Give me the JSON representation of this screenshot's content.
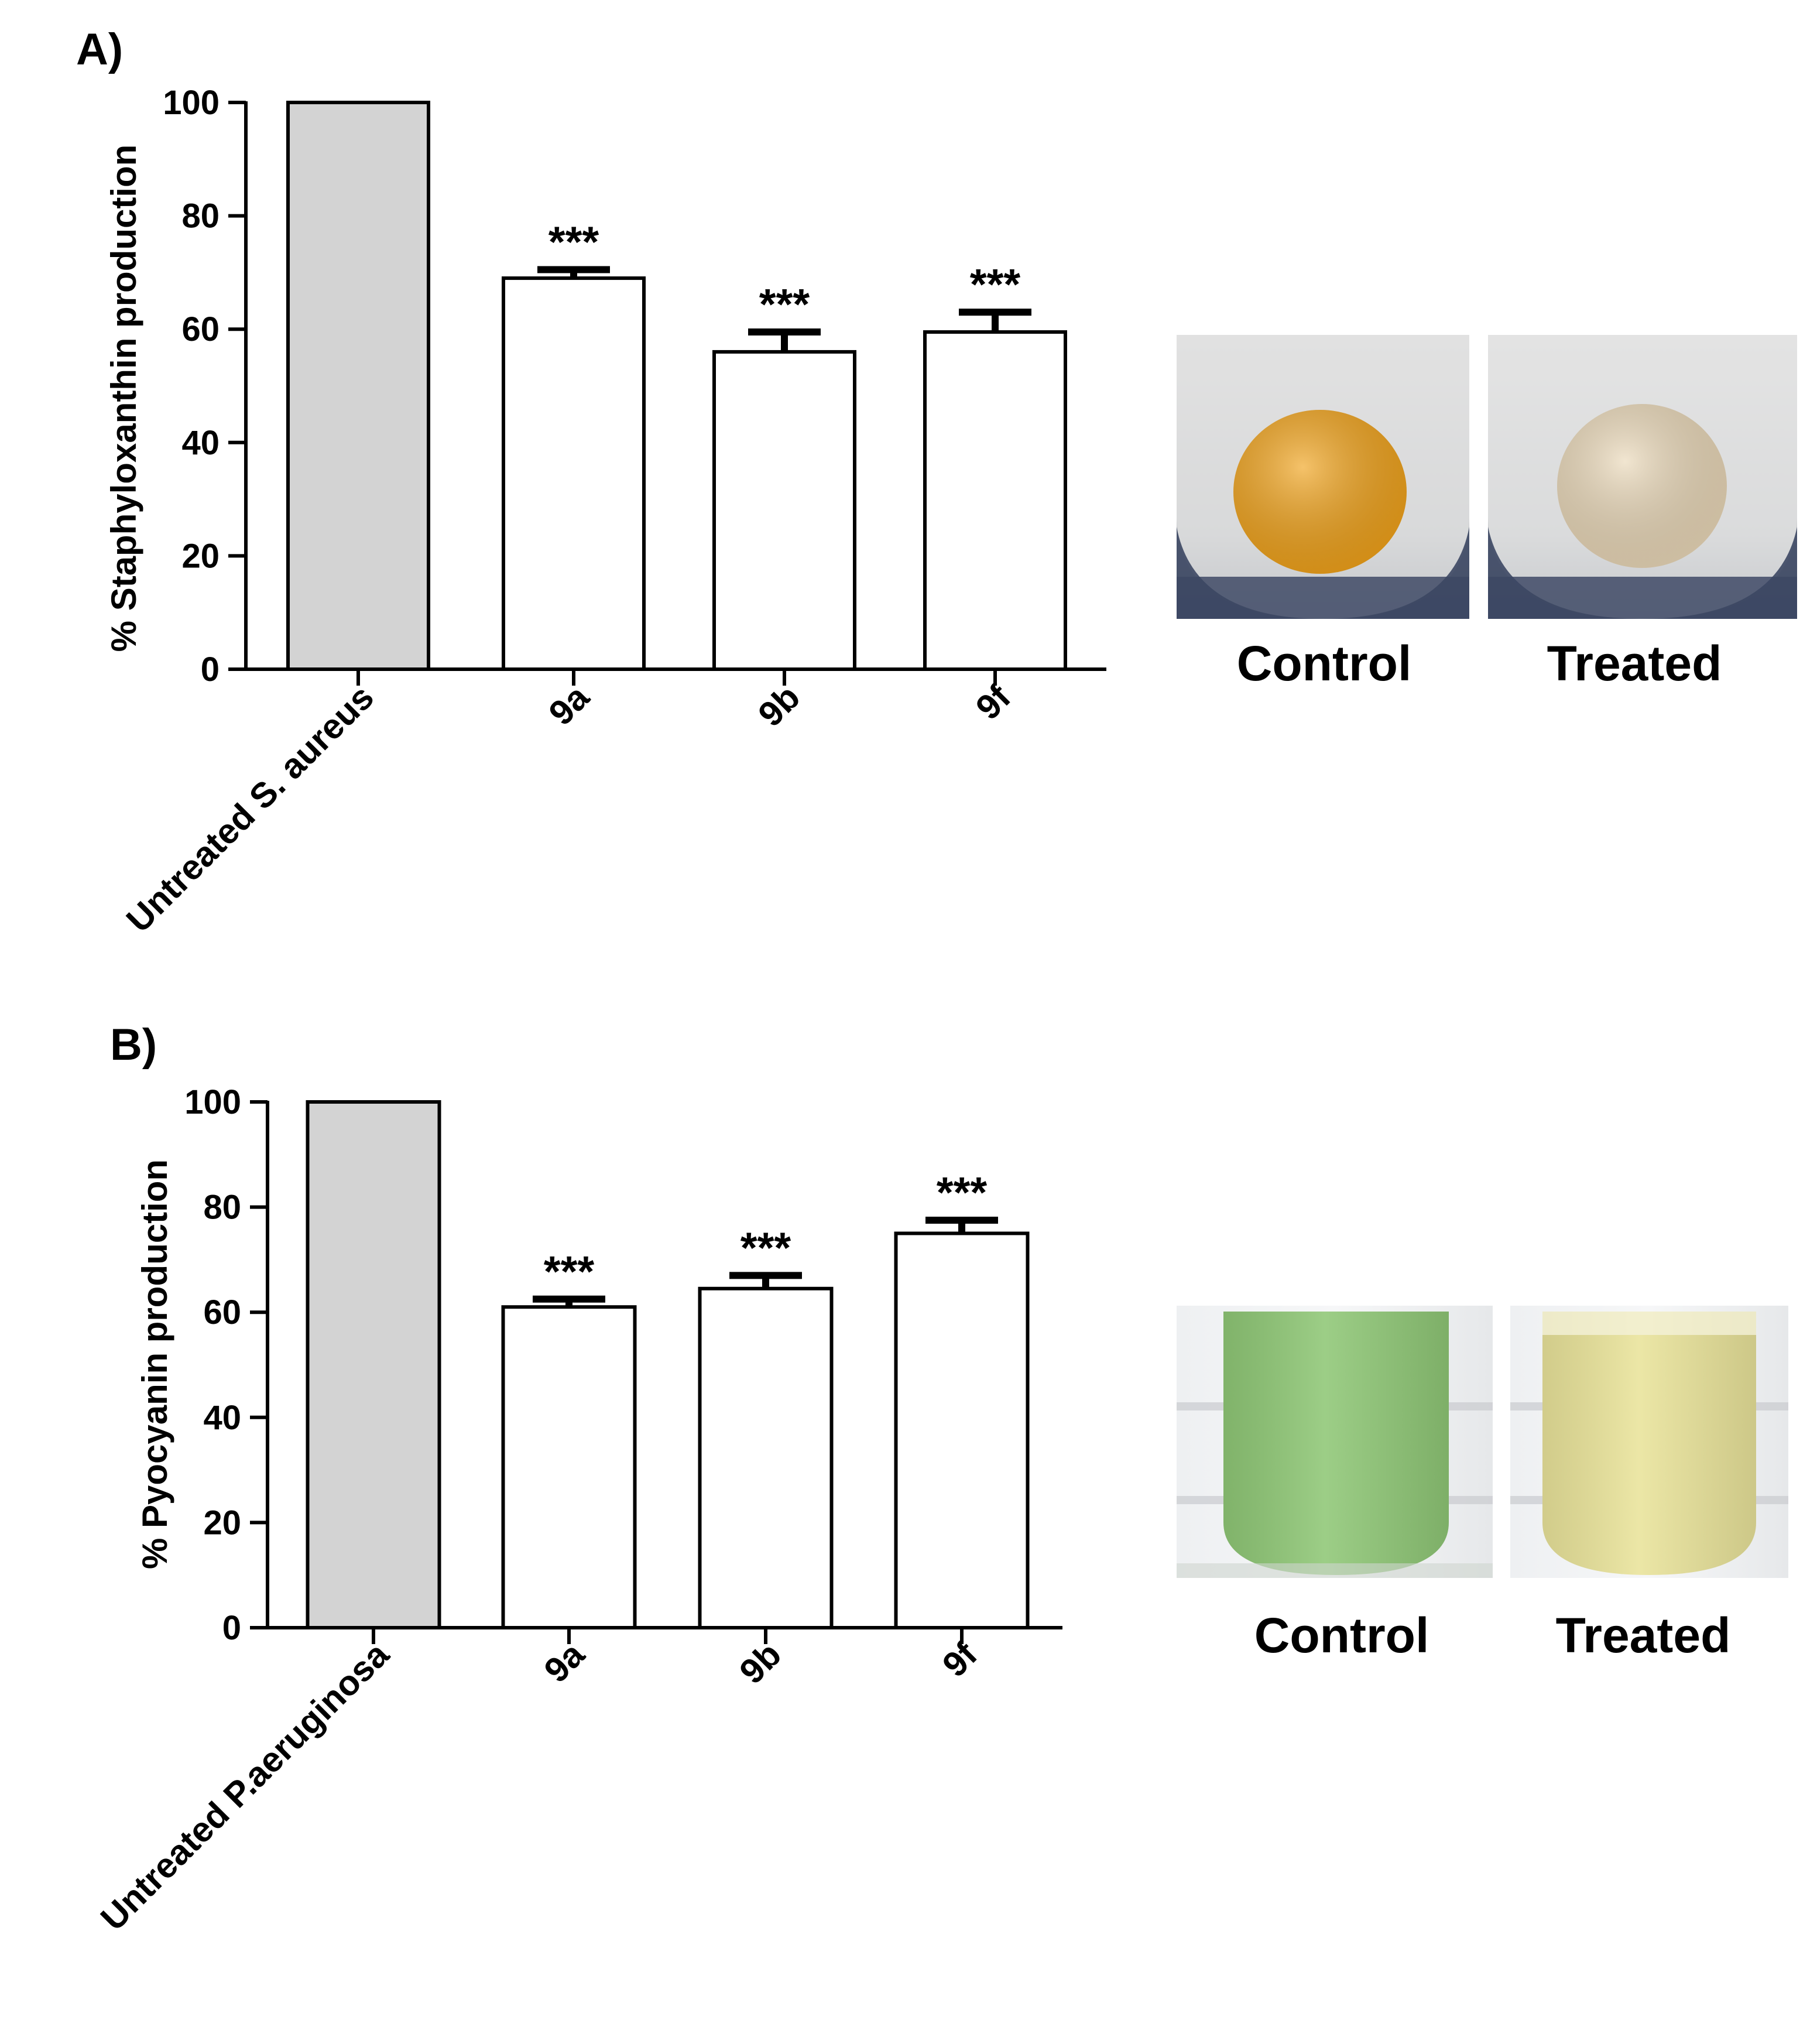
{
  "panels": [
    {
      "label": "A)",
      "chart_data": {
        "type": "bar",
        "title": "",
        "xlabel": "",
        "ylabel": "% Staphyloxanthin production",
        "ylim": [
          0,
          100
        ],
        "yticks": [
          0,
          20,
          40,
          60,
          80,
          100
        ],
        "categories": [
          "Untreated S. aureus",
          "9a",
          "9b",
          "9f"
        ],
        "values": [
          100,
          69,
          56,
          59.5
        ],
        "errors": [
          0,
          1.5,
          3.5,
          3.5
        ],
        "annotations": [
          "",
          "***",
          "***",
          "***"
        ],
        "bar_colors": [
          "#d3d3d3",
          "#ffffff",
          "#ffffff",
          "#ffffff"
        ],
        "legend": "none",
        "grid": false
      },
      "photo": {
        "control_label": "Control",
        "treated_label": "Treated",
        "control_color": "#f0a21a",
        "treated_color": "#ead8b8"
      }
    },
    {
      "label": "B)",
      "chart_data": {
        "type": "bar",
        "title": "",
        "xlabel": "",
        "ylabel": "% Pyocyanin production",
        "ylim": [
          0,
          100
        ],
        "yticks": [
          0,
          20,
          40,
          60,
          80,
          100
        ],
        "categories": [
          "Untreated P.aeruginosa",
          "9a",
          "9b",
          "9f"
        ],
        "values": [
          100,
          61,
          64.5,
          75
        ],
        "errors": [
          0,
          1.5,
          2.5,
          2.5
        ],
        "annotations": [
          "",
          "***",
          "***",
          "***"
        ],
        "bar_colors": [
          "#d3d3d3",
          "#ffffff",
          "#ffffff",
          "#ffffff"
        ],
        "legend": "none",
        "grid": false
      },
      "photo": {
        "control_label": "Control",
        "treated_label": "Treated",
        "control_color": "#8fc776",
        "treated_color": "#e9e39a"
      }
    }
  ]
}
